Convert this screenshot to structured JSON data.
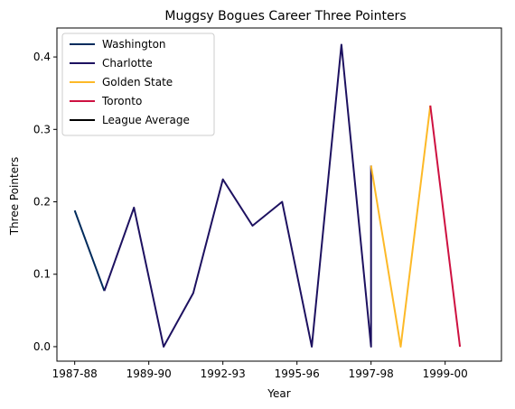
{
  "chart_data": {
    "type": "line",
    "title": "Muggsy Bogues Career Three Pointers",
    "xlabel": "Year",
    "ylabel": "Three Pointers",
    "ylim": [
      -0.02,
      0.44
    ],
    "xlim": [
      -0.6,
      14.4
    ],
    "x_ticks": [
      {
        "pos": 0,
        "label": "1987-88"
      },
      {
        "pos": 2.5,
        "label": "1989-90"
      },
      {
        "pos": 5,
        "label": "1992-93"
      },
      {
        "pos": 7.5,
        "label": "1995-96"
      },
      {
        "pos": 10,
        "label": "1997-98"
      },
      {
        "pos": 12.5,
        "label": "1999-00"
      }
    ],
    "y_ticks": [
      0.0,
      0.1,
      0.2,
      0.3,
      0.4
    ],
    "y_tick_labels": [
      "0.0",
      "0.1",
      "0.2",
      "0.3",
      "0.4"
    ],
    "grid": false,
    "legend_position": "top-left",
    "series": [
      {
        "name": "Washington",
        "color": "#002B5C",
        "x": [
          0,
          1
        ],
        "y": [
          0.188,
          0.077
        ]
      },
      {
        "name": "Charlotte",
        "color": "#1D1160",
        "x": [
          1,
          2,
          3,
          4,
          5,
          6,
          7,
          8,
          9,
          10,
          10
        ],
        "y": [
          0.077,
          0.192,
          0.0,
          0.074,
          0.231,
          0.167,
          0.2,
          0.0,
          0.417,
          0.0,
          0.25
        ]
      },
      {
        "name": "Golden State",
        "color": "#FDB927",
        "x": [
          10,
          11,
          12
        ],
        "y": [
          0.25,
          0.0,
          0.333
        ]
      },
      {
        "name": "Toronto",
        "color": "#CE1141",
        "x": [
          12,
          13
        ],
        "y": [
          0.333,
          0.0
        ]
      },
      {
        "name": "League Average",
        "color": "#000000",
        "x": [],
        "y": []
      }
    ]
  }
}
